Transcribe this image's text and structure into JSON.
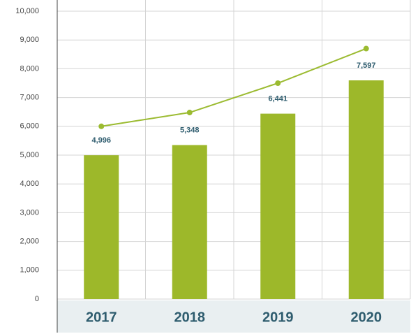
{
  "chart_data": {
    "type": "bar",
    "categories": [
      "2017",
      "2018",
      "2019",
      "2020"
    ],
    "series": [
      {
        "type": "bar",
        "color": "#9db82a",
        "values": [
          4996,
          5348,
          6441,
          7597
        ],
        "value_labels": [
          "4,996",
          "5,348",
          "6,441",
          "7,597"
        ]
      },
      {
        "type": "line",
        "color": "#9bbb30",
        "values": [
          6000,
          6480,
          7500,
          8700
        ]
      }
    ],
    "ylim": [
      0,
      10000
    ],
    "yticks": [
      0,
      {
        "value": 1000,
        "label": "1,000"
      },
      {
        "value": 2000,
        "label": "2,000"
      },
      {
        "value": 3000,
        "label": "3,000"
      },
      {
        "value": 4000,
        "label": "4,000"
      },
      {
        "value": 5000,
        "label": "5,000"
      },
      {
        "value": 6000,
        "label": "6,000"
      },
      {
        "value": 7000,
        "label": "7,000"
      },
      {
        "value": 8000,
        "label": "8,000"
      },
      {
        "value": 9000,
        "label": "9,000"
      },
      {
        "value": 10000,
        "label": "10,000"
      }
    ],
    "grid": true
  }
}
